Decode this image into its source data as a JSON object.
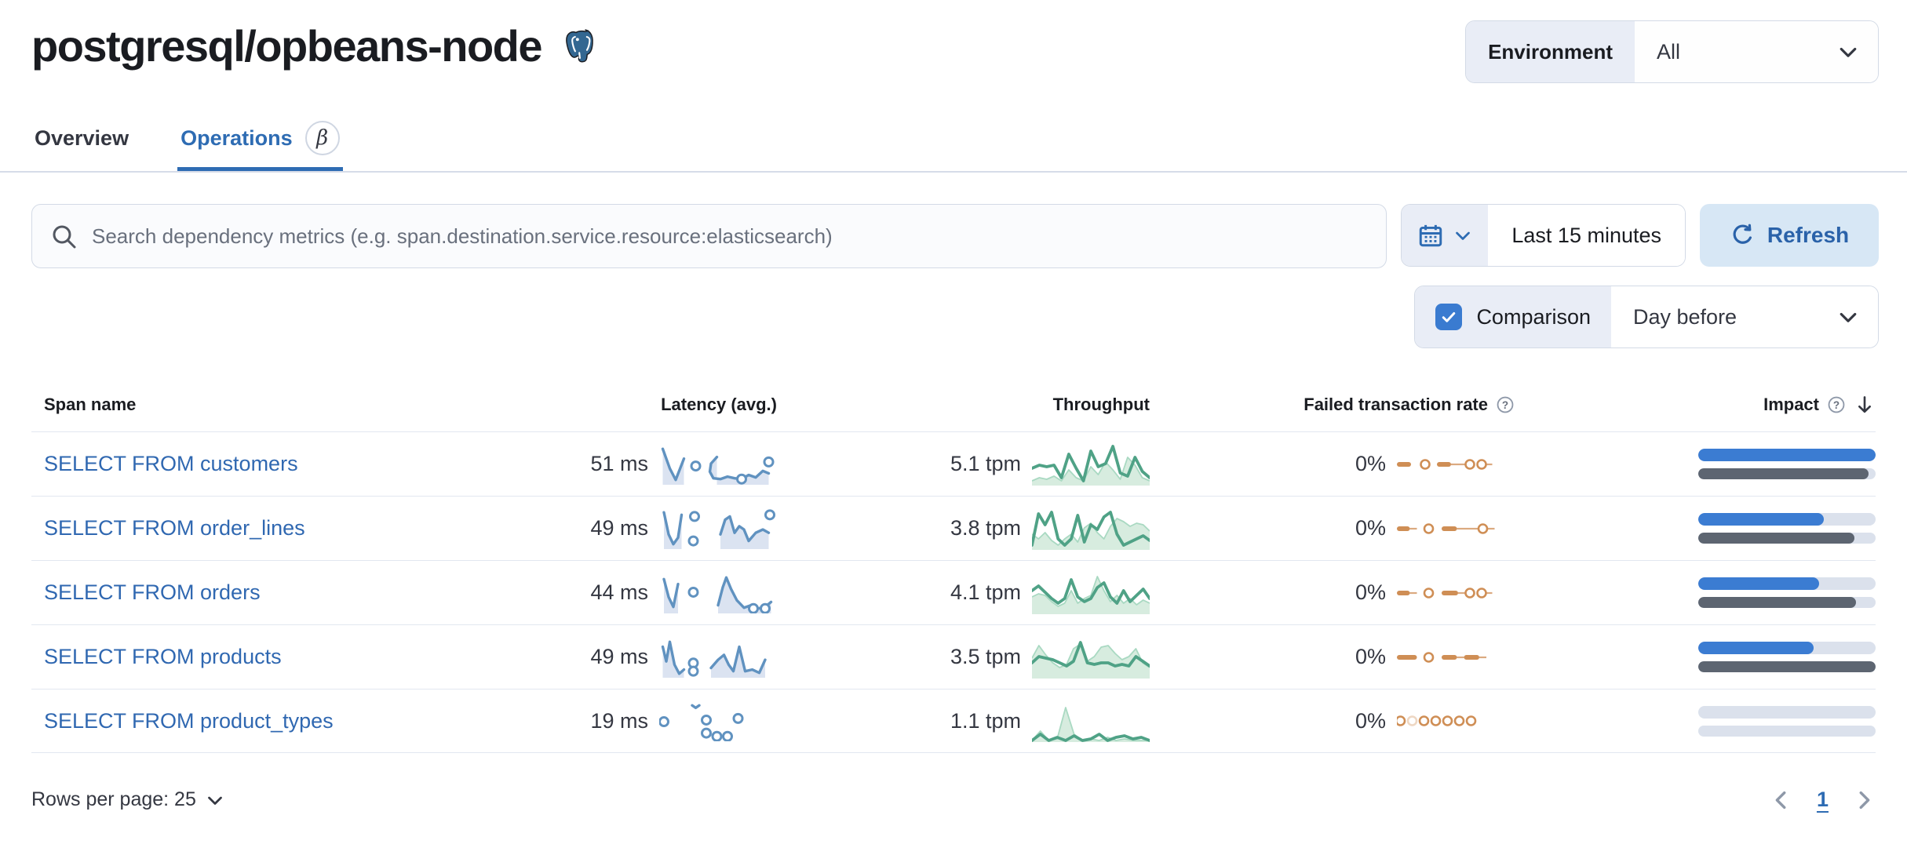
{
  "header": {
    "title": "postgresql/opbeans-node",
    "environment": {
      "label": "Environment",
      "value": "All"
    }
  },
  "tabs": [
    {
      "label": "Overview"
    },
    {
      "label": "Operations",
      "badge": "β"
    }
  ],
  "search": {
    "placeholder": "Search dependency metrics (e.g. span.destination.service.resource:elasticsearch)"
  },
  "time": {
    "range": "Last 15 minutes",
    "refresh_label": "Refresh"
  },
  "comparison": {
    "label": "Comparison",
    "value": "Day before",
    "checked": true
  },
  "table": {
    "columns": [
      {
        "label": "Span name"
      },
      {
        "label": "Latency (avg.)"
      },
      {
        "label": "Throughput"
      },
      {
        "label": "Failed transaction rate",
        "help_icon": true
      },
      {
        "label": "Impact",
        "help_icon": true,
        "sorted": "desc"
      }
    ],
    "rows": [
      {
        "name": "SELECT FROM customers",
        "latency": "51 ms",
        "throughput": "5.1 tpm",
        "failed_rate": "0%",
        "impact": {
          "current": 100,
          "previous": 96
        },
        "latency_spark": {
          "segs": [
            {
              "pts": [
                [
                  3,
                  6
                ],
                [
                  9,
                  30
                ],
                [
                  14,
                  44
                ],
                [
                  21,
                  18
                ]
              ],
              "fill": true
            },
            {
              "pts": [
                [
                  49,
                  16
                ],
                [
                  44,
                  24
                ],
                [
                  43,
                  34
                ],
                [
                  46,
                  42
                ],
                [
                  52,
                  43
                ],
                [
                  58,
                  40
                ],
                [
                  64,
                  42
                ],
                [
                  70,
                  43
                ],
                [
                  76,
                  38
                ],
                [
                  82,
                  41
                ],
                [
                  88,
                  33
                ],
                [
                  93,
                  36
                ]
              ],
              "fill": true
            }
          ],
          "dots": [
            [
              31,
              27
            ],
            [
              70,
              43
            ],
            [
              93,
              22
            ]
          ]
        },
        "throughput_spark": {
          "cur": [
            34,
            30,
            32,
            30,
            46,
            16,
            34,
            50,
            12,
            32,
            28,
            6,
            40,
            44,
            20,
            38,
            46
          ],
          "comp": [
            50,
            46,
            48,
            44,
            50,
            36,
            46,
            50,
            32,
            42,
            26,
            36,
            48,
            20,
            30,
            46,
            50
          ]
        },
        "failed_spark": [
          {
            "t": "d",
            "x": 0,
            "w": 12
          },
          {
            "t": "c",
            "x": 24
          },
          {
            "t": "d",
            "x": 34,
            "w": 12
          },
          {
            "t": "l",
            "x": 46,
            "w": 14
          },
          {
            "t": "c",
            "x": 62
          },
          {
            "t": "c",
            "x": 72
          },
          {
            "t": "l",
            "x": 76,
            "w": 5
          }
        ]
      },
      {
        "name": "SELECT FROM order_lines",
        "latency": "49 ms",
        "throughput": "3.8 tpm",
        "failed_rate": "0%",
        "impact": {
          "current": 71,
          "previous": 88
        },
        "latency_spark": {
          "segs": [
            {
              "pts": [
                [
                  4,
                  5
                ],
                [
                  8,
                  32
                ],
                [
                  12,
                  44
                ],
                [
                  16,
                  36
                ],
                [
                  19,
                  8
                ]
              ],
              "fill": true
            },
            {
              "pts": [
                [
                  52,
                  32
                ],
                [
                  56,
                  14
                ],
                [
                  60,
                  10
                ],
                [
                  64,
                  30
                ],
                [
                  68,
                  22
                ],
                [
                  72,
                  26
                ],
                [
                  76,
                  40
                ],
                [
                  82,
                  30
                ],
                [
                  88,
                  26
                ],
                [
                  93,
                  30
                ]
              ],
              "fill": true
            }
          ],
          "dots": [
            [
              30,
              10
            ],
            [
              29,
              40
            ],
            [
              94,
              8
            ]
          ]
        },
        "throughput_spark": {
          "cur": [
            50,
            10,
            24,
            8,
            42,
            50,
            42,
            12,
            46,
            24,
            30,
            14,
            8,
            36,
            50,
            46,
            42,
            38,
            44
          ],
          "comp": [
            36,
            42,
            34,
            44,
            50,
            42,
            36,
            46,
            28,
            22,
            34,
            42,
            26,
            16,
            20,
            26,
            22,
            24,
            32
          ]
        },
        "failed_spark": [
          {
            "t": "d",
            "x": 0,
            "w": 11
          },
          {
            "t": "l",
            "x": 11,
            "w": 6
          },
          {
            "t": "c",
            "x": 27
          },
          {
            "t": "d",
            "x": 38,
            "w": 13
          },
          {
            "t": "l",
            "x": 51,
            "w": 20
          },
          {
            "t": "c",
            "x": 73
          },
          {
            "t": "l",
            "x": 77,
            "w": 6
          }
        ]
      },
      {
        "name": "SELECT FROM orders",
        "latency": "44 ms",
        "throughput": "4.1 tpm",
        "failed_rate": "0%",
        "impact": {
          "current": 68,
          "previous": 89
        },
        "latency_spark": {
          "segs": [
            {
              "pts": [
                [
                  4,
                  8
                ],
                [
                  8,
                  30
                ],
                [
                  12,
                  42
                ],
                [
                  16,
                  14
                ]
              ],
              "fill": true
            },
            {
              "pts": [
                [
                  50,
                  40
                ],
                [
                  54,
                  18
                ],
                [
                  57,
                  6
                ],
                [
                  61,
                  20
                ],
                [
                  66,
                  34
                ],
                [
                  72,
                  43
                ],
                [
                  78,
                  40
                ],
                [
                  84,
                  44
                ],
                [
                  90,
                  42
                ],
                [
                  95,
                  36
                ]
              ],
              "fill": true
            }
          ],
          "dots": [
            [
              29,
              24
            ],
            [
              80,
              44
            ],
            [
              90,
              44
            ]
          ]
        },
        "throughput_spark": {
          "cur": [
            26,
            20,
            28,
            36,
            42,
            36,
            12,
            34,
            40,
            36,
            22,
            16,
            34,
            42,
            26,
            40,
            32,
            24,
            36
          ],
          "comp": [
            34,
            30,
            32,
            40,
            46,
            42,
            26,
            42,
            36,
            32,
            8,
            26,
            40,
            32,
            42,
            36,
            44,
            38,
            42
          ]
        },
        "failed_spark": [
          {
            "t": "d",
            "x": 0,
            "w": 11
          },
          {
            "t": "l",
            "x": 11,
            "w": 6
          },
          {
            "t": "c",
            "x": 27
          },
          {
            "t": "d",
            "x": 38,
            "w": 14
          },
          {
            "t": "l",
            "x": 52,
            "w": 8
          },
          {
            "t": "c",
            "x": 62
          },
          {
            "t": "c",
            "x": 72
          },
          {
            "t": "l",
            "x": 76,
            "w": 5
          }
        ]
      },
      {
        "name": "SELECT FROM products",
        "latency": "49 ms",
        "throughput": "3.5 tpm",
        "failed_rate": "0%",
        "impact": {
          "current": 65,
          "previous": 100
        },
        "latency_spark": {
          "segs": [
            {
              "pts": [
                [
                  3,
                  12
                ],
                [
                  6,
                  30
                ],
                [
                  9,
                  6
                ],
                [
                  13,
                  34
                ],
                [
                  17,
                  45
                ],
                [
                  21,
                  40
                ]
              ],
              "fill": true
            },
            {
              "pts": [
                [
                  44,
                  38
                ],
                [
                  50,
                  28
                ],
                [
                  55,
                  22
                ],
                [
                  59,
                  34
                ],
                [
                  63,
                  42
                ],
                [
                  68,
                  12
                ],
                [
                  73,
                  42
                ],
                [
                  79,
                  40
                ],
                [
                  85,
                  44
                ],
                [
                  90,
                  28
                ]
              ],
              "fill": true
            }
          ],
          "dots": [
            [
              29,
              32
            ],
            [
              29,
              42
            ]
          ]
        },
        "throughput_spark": {
          "cur": [
            36,
            28,
            30,
            32,
            36,
            40,
            34,
            10,
            36,
            38,
            36,
            36,
            40,
            38,
            40,
            28,
            34,
            40
          ],
          "comp": [
            30,
            14,
            26,
            36,
            42,
            38,
            18,
            12,
            34,
            28,
            16,
            14,
            24,
            32,
            28,
            18,
            36,
            42
          ]
        },
        "failed_spark": [
          {
            "t": "d",
            "x": 0,
            "w": 17
          },
          {
            "t": "c",
            "x": 27
          },
          {
            "t": "d",
            "x": 38,
            "w": 13
          },
          {
            "t": "l",
            "x": 51,
            "w": 6
          },
          {
            "t": "d",
            "x": 57,
            "w": 13
          },
          {
            "t": "l",
            "x": 70,
            "w": 6
          }
        ]
      },
      {
        "name": "SELECT FROM product_types",
        "latency": "19 ms",
        "throughput": "1.1 tpm",
        "failed_rate": "0%",
        "impact": {
          "current": 0,
          "previous": 0
        },
        "latency_spark": {
          "segs": [
            {
              "pts": [
                [
                  28,
                  6
                ],
                [
                  31,
                  9
                ],
                [
                  34,
                  6
                ]
              ],
              "fill": false
            }
          ],
          "dots": [
            [
              4,
              26
            ],
            [
              40,
              24
            ],
            [
              40,
              40
            ],
            [
              49,
              44
            ],
            [
              58,
              44
            ],
            [
              67,
              22
            ]
          ]
        },
        "throughput_spark": {
          "cur": [
            54,
            46,
            54,
            50,
            54,
            48,
            54,
            52,
            46,
            54,
            50,
            48,
            52,
            50,
            54
          ],
          "comp": [
            54,
            42,
            54,
            52,
            12,
            46,
            54,
            52,
            54,
            50,
            54,
            52,
            54,
            54,
            54
          ]
        },
        "failed_spark": [
          {
            "t": "c",
            "x": 3
          },
          {
            "t": "cf",
            "x": 13
          },
          {
            "t": "c",
            "x": 23
          },
          {
            "t": "c",
            "x": 33
          },
          {
            "t": "c",
            "x": 43
          },
          {
            "t": "c",
            "x": 53
          },
          {
            "t": "c",
            "x": 63
          }
        ]
      }
    ]
  },
  "pagination": {
    "rows_per_page_label": "Rows per page: 25",
    "current_page": "1"
  },
  "colors": {
    "link_blue": "#3068b1",
    "tab_active": "#2e6cb3",
    "latency_spark": "#6092c0",
    "latency_fill": "#dbe3f1",
    "throughput_spark": "#4fa286",
    "throughput_fill": "#d7ecdf",
    "throughput_comp_line": "#a9d9c2",
    "failed_spark": "#cf8e55",
    "impact_current": "#3b7cd2",
    "impact_previous": "#5d6571",
    "impact_track": "#dbe1ec",
    "refresh_bg": "#d7e7f5",
    "refresh_text": "#2a62a9",
    "checkbox_blue": "#3a7bd0"
  }
}
